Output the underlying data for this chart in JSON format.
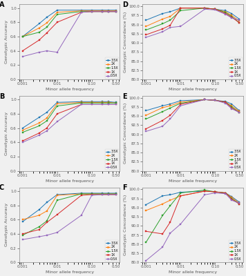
{
  "x_vals": [
    0.001,
    0.003,
    0.005,
    0.01,
    0.05,
    0.1,
    0.2,
    0.3,
    0.5
  ],
  "colors": {
    "3.5X": "#1f77b4",
    "2X": "#ff7f0e",
    "1.5X": "#2ca02c",
    "1X": "#d62728",
    "0.5X": "#9467bd"
  },
  "panel_A": {
    "title": "A",
    "ylabel": "Genotypic Accuracy",
    "xlabel": "Minor allele frequency",
    "ylim": [
      0.0,
      1.05
    ],
    "yticks": [
      0.0,
      0.2,
      0.4,
      0.6,
      0.8,
      1.0
    ],
    "data": {
      "3.5X": [
        0.6,
        0.78,
        0.87,
        0.97,
        0.97,
        0.97,
        0.97,
        0.97,
        0.97
      ],
      "2X": [
        0.6,
        0.72,
        0.79,
        0.94,
        0.96,
        0.96,
        0.96,
        0.96,
        0.96
      ],
      "1.5X": [
        0.6,
        0.66,
        0.73,
        0.91,
        0.95,
        0.95,
        0.95,
        0.95,
        0.95
      ],
      "1X": [
        0.4,
        0.55,
        0.65,
        0.8,
        0.94,
        0.95,
        0.95,
        0.95,
        0.95
      ],
      "0.5X": [
        0.32,
        0.38,
        0.4,
        0.38,
        0.94,
        0.95,
        0.95,
        0.95,
        0.95
      ]
    }
  },
  "panel_B": {
    "title": "B",
    "ylabel": "Genotypic Accuracy",
    "xlabel": "Minor allele frequency",
    "ylim": [
      0.0,
      1.05
    ],
    "yticks": [
      0.0,
      0.2,
      0.4,
      0.6,
      0.8,
      1.0
    ],
    "data": {
      "3.5X": [
        0.6,
        0.75,
        0.82,
        0.96,
        0.97,
        0.97,
        0.97,
        0.97,
        0.96
      ],
      "2X": [
        0.57,
        0.67,
        0.74,
        0.94,
        0.96,
        0.96,
        0.96,
        0.96,
        0.95
      ],
      "1.5X": [
        0.54,
        0.63,
        0.7,
        0.91,
        0.95,
        0.95,
        0.95,
        0.95,
        0.95
      ],
      "1X": [
        0.42,
        0.53,
        0.6,
        0.8,
        0.93,
        0.93,
        0.93,
        0.93,
        0.93
      ],
      "0.5X": [
        0.4,
        0.5,
        0.56,
        0.69,
        0.93,
        0.93,
        0.93,
        0.93,
        0.93
      ]
    }
  },
  "panel_C": {
    "title": "C",
    "ylabel": "Genotypic Accuracy",
    "xlabel": "Minor allele frequency",
    "ylim": [
      0.0,
      1.05
    ],
    "yticks": [
      0.0,
      0.2,
      0.4,
      0.6,
      0.8,
      1.0
    ],
    "data": {
      "3.5X": [
        0.57,
        0.74,
        0.84,
        0.95,
        0.97,
        0.97,
        0.97,
        0.97,
        0.97
      ],
      "2X": [
        0.6,
        0.66,
        0.72,
        0.94,
        0.96,
        0.96,
        0.96,
        0.96,
        0.96
      ],
      "1.5X": [
        0.38,
        0.5,
        0.58,
        0.87,
        0.96,
        0.96,
        0.96,
        0.96,
        0.96
      ],
      "1X": [
        0.4,
        0.46,
        0.56,
        0.67,
        0.94,
        0.95,
        0.95,
        0.95,
        0.95
      ],
      "0.5X": [
        0.32,
        0.36,
        0.38,
        0.42,
        0.66,
        0.94,
        0.95,
        0.95,
        0.95
      ]
    }
  },
  "panel_D": {
    "title": "D",
    "ylabel": "Genotypic Concordance (%)",
    "xlabel": "Minor allele frequency",
    "ylim": [
      80.0,
      100.5
    ],
    "yticks": [
      80.0,
      82.5,
      85.0,
      87.5,
      90.0,
      92.5,
      95.0,
      97.5,
      100.0
    ],
    "data": {
      "3.5X": [
        96.2,
        98.0,
        98.5,
        99.5,
        99.5,
        99.2,
        98.8,
        98.0,
        96.5
      ],
      "2X": [
        94.5,
        96.5,
        97.2,
        99.5,
        99.5,
        99.2,
        98.5,
        97.5,
        96.0
      ],
      "1.5X": [
        93.5,
        95.2,
        96.2,
        98.8,
        99.5,
        99.2,
        98.3,
        97.2,
        95.5
      ],
      "1X": [
        92.2,
        93.8,
        94.8,
        99.5,
        99.5,
        99.2,
        98.0,
        97.0,
        95.5
      ],
      "0.5X": [
        91.5,
        93.0,
        94.2,
        94.5,
        99.2,
        99.0,
        97.8,
        96.8,
        96.2
      ]
    }
  },
  "panel_E": {
    "title": "E",
    "ylabel": "Genotypic Concordance (%)",
    "xlabel": "Minor allele frequency",
    "ylim": [
      80.0,
      100.5
    ],
    "yticks": [
      80.0,
      82.5,
      85.0,
      87.5,
      90.0,
      92.5,
      95.0,
      97.5,
      100.0
    ],
    "data": {
      "3.5X": [
        96.5,
        97.8,
        98.3,
        99.2,
        99.5,
        99.3,
        99.0,
        98.3,
        96.5
      ],
      "2X": [
        95.2,
        97.3,
        97.8,
        98.8,
        99.5,
        99.3,
        98.8,
        97.8,
        96.3
      ],
      "1.5X": [
        94.2,
        96.2,
        97.2,
        98.5,
        99.5,
        99.3,
        98.8,
        97.5,
        96.0
      ],
      "1X": [
        91.5,
        93.8,
        95.2,
        98.2,
        99.5,
        99.3,
        98.8,
        97.2,
        96.0
      ],
      "0.5X": [
        90.8,
        92.2,
        94.2,
        97.8,
        99.5,
        99.3,
        98.5,
        97.0,
        96.0
      ]
    }
  },
  "panel_F": {
    "title": "F",
    "ylabel": "Genotypic Concordance (%)",
    "xlabel": "Minor allele frequency",
    "ylim": [
      80.0,
      100.5
    ],
    "yticks": [
      80.0,
      82.5,
      85.0,
      87.5,
      90.0,
      92.5,
      95.0,
      97.5,
      100.0
    ],
    "data": {
      "3.5X": [
        95.8,
        98.2,
        98.5,
        99.2,
        99.5,
        99.3,
        99.0,
        98.0,
        96.5
      ],
      "2X": [
        94.2,
        96.0,
        97.0,
        98.2,
        99.5,
        99.3,
        99.0,
        97.8,
        96.2
      ],
      "1.5X": [
        85.5,
        92.8,
        95.5,
        99.0,
        99.8,
        99.3,
        99.0,
        97.5,
        96.0
      ],
      "1X": [
        88.5,
        87.8,
        91.0,
        98.2,
        99.5,
        99.3,
        99.0,
        97.3,
        96.0
      ],
      "0.5X": [
        80.5,
        84.2,
        88.0,
        90.5,
        98.5,
        99.0,
        98.8,
        97.0,
        96.2
      ]
    }
  },
  "legend_labels": [
    "3.5X",
    "2X",
    "1.5X",
    "1X",
    "0.5X"
  ],
  "x_ticks": [
    0.001,
    0.01,
    0.1,
    0.5
  ],
  "x_tick_labels": [
    "0.001",
    "0.01",
    "0.10",
    "0.50"
  ],
  "bg_color": "#f0f0f0"
}
